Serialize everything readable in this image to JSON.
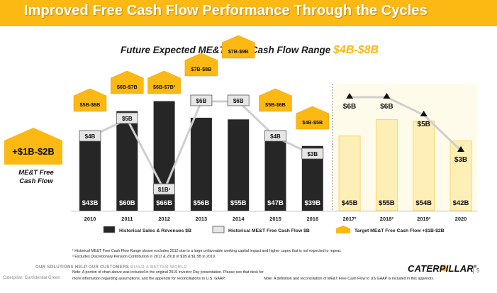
{
  "header": {
    "title": "Improved Free Cash Flow Performance Through the Cycles"
  },
  "subtitle": {
    "prefix": "Future Expected ME&T Free Cash Flow Range",
    "highlight": "$4B-$8B"
  },
  "side_badge": {
    "label": "+$1B-$2B",
    "note": "ME&T Free Cash Flow"
  },
  "chart_data": {
    "type": "bar",
    "categories": [
      "2010",
      "2011",
      "2012",
      "2013",
      "2014",
      "2015",
      "2016",
      "2017²",
      "2018²",
      "2019²",
      "2020"
    ],
    "series": [
      {
        "name": "Historical Sales & Revenues $B",
        "values": [
          43,
          60,
          66,
          56,
          55,
          47,
          39,
          45,
          55,
          54,
          42
        ],
        "labels": [
          "$43B",
          "$60B",
          "$66B",
          "$56B",
          "$55B",
          "$47B",
          "$39B",
          "$45B",
          "$55B",
          "$54B",
          "$42B"
        ]
      },
      {
        "name": "Historical ME&T Free Cash Flow $B",
        "values": [
          4,
          5,
          1,
          6,
          6,
          4,
          3,
          6,
          6,
          5,
          3
        ],
        "labels": [
          "$4B",
          "$5B",
          "$1B¹",
          "$6B",
          "$6B",
          "$4B",
          "$3B",
          "$6B",
          "$6B",
          "$5B",
          "$3B"
        ]
      },
      {
        "name": "Target ME&T Free Cash Flow +$1B-$2B",
        "ranges": [
          [
            5,
            6
          ],
          [
            6,
            7
          ],
          [
            6,
            7
          ],
          [
            7,
            8
          ],
          [
            7,
            9
          ],
          [
            5,
            6
          ],
          [
            4,
            5
          ]
        ],
        "labels": [
          "$5B-$6B",
          "$6B-$7B",
          "$6B-$7B²",
          "$7B-$8B",
          "$7B-$9B",
          "$5B-$6B",
          "$4B-$5B"
        ]
      }
    ],
    "forecast_start": "2017²",
    "legend": [
      "Historical Sales & Revenues $B",
      "Historical ME&T Free Cash Flow $B",
      "Target ME&T Free Cash Flow +$1B-$2B"
    ],
    "legend_position": "bottom",
    "colors": {
      "sales": "#262626",
      "forecast_sales": "#fdefb6",
      "fcf": "#d9d9d9",
      "target": "#fcb813",
      "line": "#cfcfcf",
      "accent": "#fcb813"
    }
  },
  "footnotes": {
    "fn1": "¹ Historical ME&T Free Cash Flow Range shown excludes 2012 due to a large unfavorable working capital impact and higher capex that is not expected to repeat.",
    "fn2": "² Excludes Discretionary Pension Contribution in 2017 & 2018 of $1B & $1.5B in 2019.",
    "note_left_1": "Note:  A portion of chart above was included in the original 2019 Investor Day presentation. Please see that deck for",
    "note_left_2": "more information regarding assumptions, and the appendix for reconciliations to U.S. GAAP.",
    "note_right": "Note: A definition and reconciliation of ME&T Free Cash Flow to US GAAP is included in this appendix."
  },
  "footer": {
    "solutions_a": "OUR SOLUTIONS HELP OUR CUSTOMERS",
    "solutions_b": "BUILD A BETTER WORLD",
    "confidential": "Caterpillar: Confidential Green",
    "logo": "CATERPILLAR",
    "registered": "®",
    "page": "5"
  }
}
